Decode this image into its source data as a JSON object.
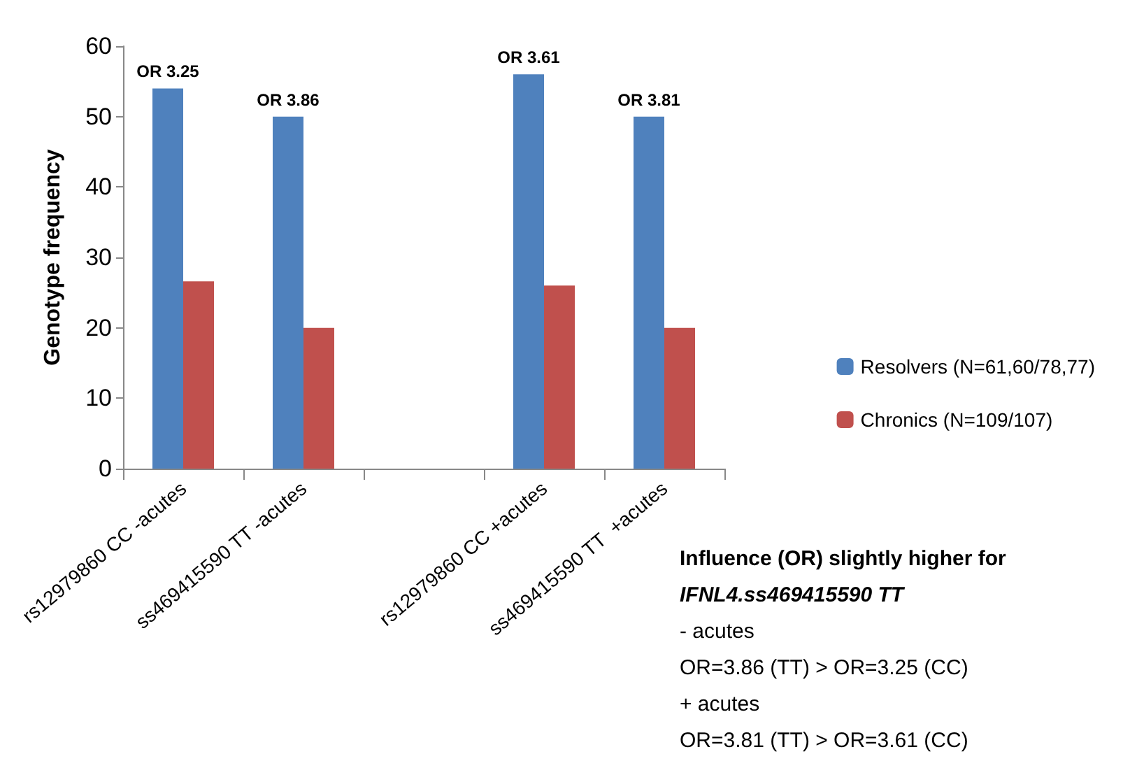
{
  "chart_data": {
    "type": "bar",
    "ylabel": "Genotype frequency",
    "categories": [
      "rs12979860 CC -acutes",
      "ss469415590 TT -acutes",
      null,
      "rs12979860 CC +acutes",
      "ss469415590 TT  +acutes"
    ],
    "series": [
      {
        "name": "Resolvers (N=61,60/78,77)",
        "color": "#4f81bd",
        "values": [
          54,
          50,
          null,
          56,
          50
        ]
      },
      {
        "name": "Chronics (N=109/107)",
        "color": "#c0504d",
        "values": [
          26.6,
          20,
          null,
          26,
          20
        ]
      }
    ],
    "ylim": [
      0,
      60
    ],
    "yticks": [
      0,
      10,
      20,
      30,
      40,
      50,
      60
    ],
    "grid": false,
    "legend": "right",
    "annotations": [
      {
        "text": "OR 3.25",
        "x": "rs12979860 CC -acutes",
        "y": 54
      },
      {
        "text": "OR 3.86",
        "x": "ss469415590 TT -acutes",
        "y": 50
      },
      {
        "text": "OR 3.61",
        "x": "rs12979860 CC +acutes",
        "y": 56
      },
      {
        "text": "OR 3.81",
        "x": "ss469415590 TT  +acutes",
        "y": 50
      },
      "Influence (OR) slightly higher for",
      "IFNL4.ss469415590 TT",
      "- acutes",
      "OR=3.86 (TT) > OR=3.25 (CC)",
      "+ acutes",
      "OR=3.81 (TT) > OR=3.61 (CC)"
    ]
  }
}
